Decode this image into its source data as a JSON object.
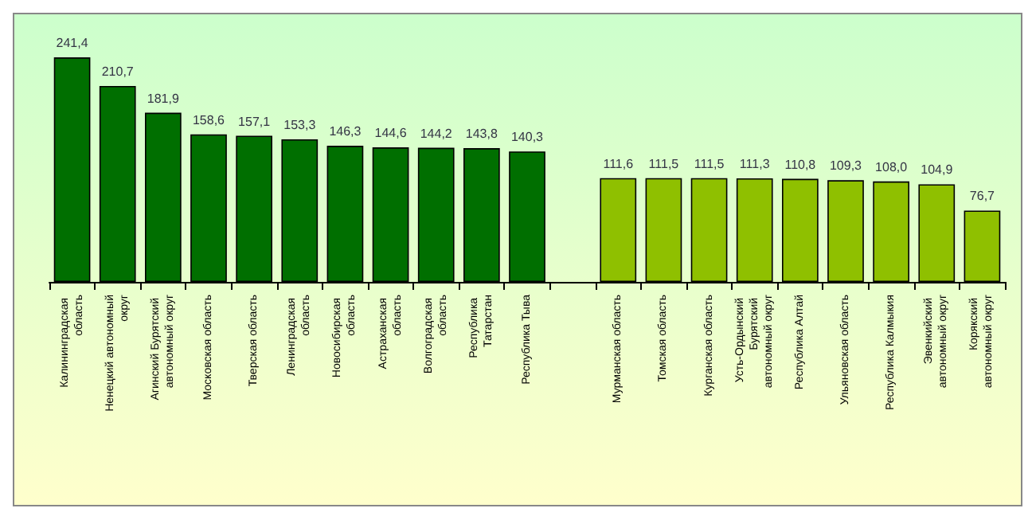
{
  "chart_data": {
    "type": "bar",
    "tick_labels": "x",
    "categories": [
      "Калининградская область",
      "Ненецкий автономный округ",
      "Агинский Бурятский автономный округ",
      "Московская область",
      "Тверская область",
      "Ленинградская область",
      "Новосибирская область",
      "Астраханская область",
      "Волгоградская область",
      "Республика Татарстан",
      "Республика Тыва",
      null,
      "Мурманская область",
      "Томская область",
      "Курганская область",
      "Усть-Ордынский Бурятский автономный округ",
      "Республика Алтай",
      "Ульяновская область",
      "Республика Калмыкия",
      "Эвенкийский автономный округ",
      "Корякский автономный округ"
    ],
    "values": [
      241.4,
      210.7,
      181.9,
      158.6,
      157.1,
      153.3,
      146.3,
      144.6,
      144.2,
      143.8,
      140.3,
      null,
      111.6,
      111.5,
      111.5,
      111.3,
      110.8,
      109.3,
      108.0,
      104.9,
      76.7
    ],
    "value_labels": [
      "241,4",
      "210,7",
      "181,9",
      "158,6",
      "157,1",
      "153,3",
      "146,3",
      "144,6",
      "144,2",
      "143,8",
      "140,3",
      null,
      "111,6",
      "111,5",
      "111,5",
      "111,3",
      "110,8",
      "109,3",
      "108,0",
      "104,9",
      "76,7"
    ],
    "colors": [
      "#006f00",
      "#006f00",
      "#006f00",
      "#006f00",
      "#006f00",
      "#006f00",
      "#006f00",
      "#006f00",
      "#006f00",
      "#006f00",
      "#006f00",
      null,
      "#8fc000",
      "#8fc000",
      "#8fc000",
      "#8fc000",
      "#8fc000",
      "#8fc000",
      "#8fc000",
      "#8fc000",
      "#8fc000"
    ]
  }
}
